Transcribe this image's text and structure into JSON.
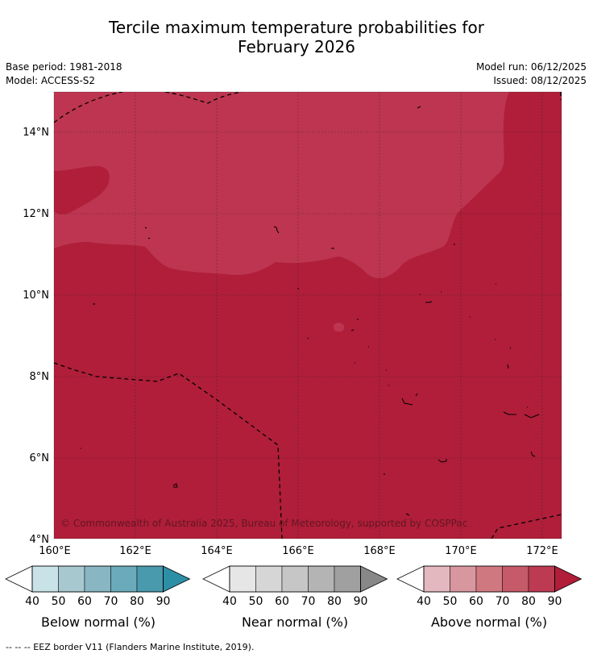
{
  "title_line1": "Tercile maximum temperature probabilities for",
  "title_line2": "February 2026",
  "base_period": "Base period: 1981-2018",
  "model": "Model: ACCESS-S2",
  "model_run": "Model run: 06/12/2025",
  "issued": "Issued: 08/12/2025",
  "map": {
    "lon_ticks": [
      "160°E",
      "162°E",
      "164°E",
      "166°E",
      "168°E",
      "170°E",
      "172°E"
    ],
    "lat_ticks": [
      "14°N",
      "12°N",
      "10°N",
      "8°N",
      "6°N",
      "4°N"
    ],
    "lon_range": [
      160,
      172.5
    ],
    "lat_range": [
      4,
      15
    ],
    "credit": "© Commonwealth of Australia 2025, Bureau of Meteorology, supported by COSPPac",
    "colors": {
      "above_80_90": "#b01e3a",
      "above_70_80": "#bd3550",
      "border": "#000000"
    }
  },
  "colorbars": [
    {
      "title": "Below normal (%)",
      "labels": [
        "40",
        "50",
        "60",
        "70",
        "80",
        "90"
      ],
      "colors": [
        "#ffffff",
        "#c8e2e8",
        "#a6c8ce",
        "#88b6c2",
        "#6aaabb",
        "#4a9aad",
        "#2d8fa5"
      ]
    },
    {
      "title": "Near normal (%)",
      "labels": [
        "40",
        "50",
        "60",
        "70",
        "80",
        "90"
      ],
      "colors": [
        "#ffffff",
        "#e6e6e6",
        "#d6d6d6",
        "#c6c6c6",
        "#b4b4b4",
        "#a0a0a0",
        "#888888"
      ]
    },
    {
      "title": "Above normal (%)",
      "labels": [
        "40",
        "50",
        "60",
        "70",
        "80",
        "90"
      ],
      "colors": [
        "#ffffff",
        "#e4b8bf",
        "#d8979f",
        "#d07880",
        "#c65a68",
        "#bc3a52",
        "#b01e3a"
      ]
    }
  ],
  "footnote": "--  --  -- EEZ border V11 (Flanders Marine Institute, 2019)."
}
